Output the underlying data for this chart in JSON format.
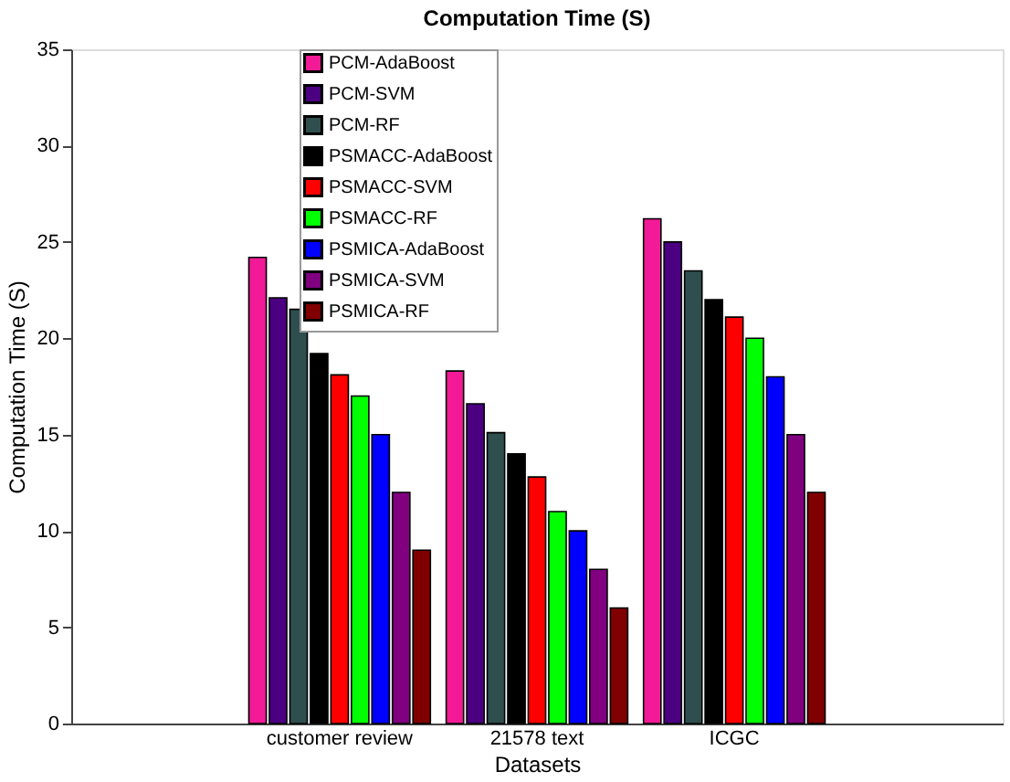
{
  "chart_data": {
    "type": "bar",
    "title": "Computation Time (S)",
    "xlabel": "Datasets",
    "ylabel": "Computation Time (S)",
    "categories": [
      "customer review",
      "21578 text",
      "ICGC"
    ],
    "ylim": [
      0,
      35
    ],
    "yticks": [
      0,
      5,
      10,
      15,
      20,
      25,
      30,
      35
    ],
    "grid": false,
    "legend": "top left",
    "series": [
      {
        "name": "PCM-AdaBoost",
        "color": "#f21a96",
        "values": [
          24.2,
          18.3,
          26.2
        ]
      },
      {
        "name": "PCM-SVM",
        "color": "#4b0082",
        "values": [
          22.1,
          16.6,
          25
        ]
      },
      {
        "name": "PCM-RF",
        "color": "#2f4f4f",
        "values": [
          21.5,
          15.1,
          23.5
        ]
      },
      {
        "name": "PSMACC-AdaBoost",
        "color": "#000000",
        "values": [
          19.2,
          14,
          22
        ]
      },
      {
        "name": "PSMACC-SVM",
        "color": "#ff0000",
        "values": [
          18.1,
          12.8,
          21.1
        ]
      },
      {
        "name": "PSMACC-RF",
        "color": "#00ff00",
        "values": [
          17,
          11,
          20
        ]
      },
      {
        "name": "PSMICA-AdaBoost",
        "color": "#0000ff",
        "values": [
          15,
          10,
          18
        ]
      },
      {
        "name": "PSMICA-SVM",
        "color": "#800080",
        "values": [
          12,
          8,
          15
        ]
      },
      {
        "name": "PSMICA-RF",
        "color": "#800000",
        "values": [
          9,
          6,
          12
        ]
      }
    ]
  }
}
